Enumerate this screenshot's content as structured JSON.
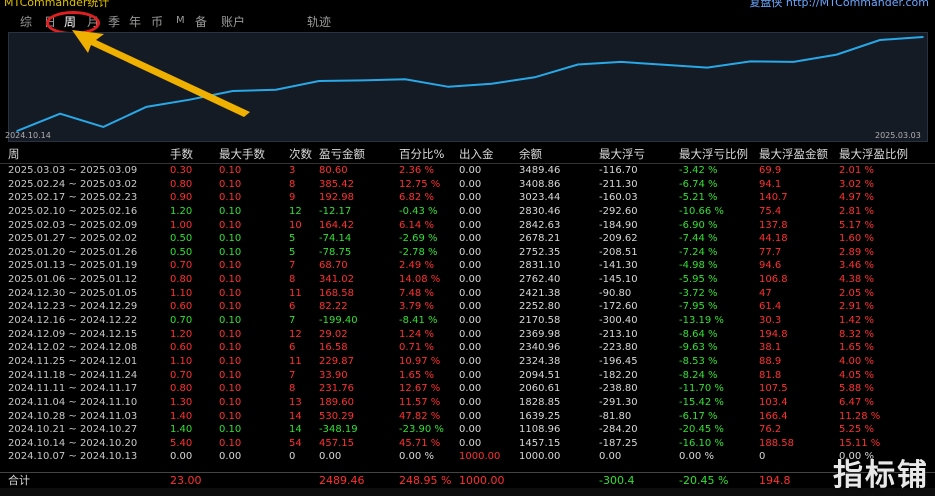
{
  "header": {
    "app_title": "MTCommander统计",
    "site_link": "复盘侠 http://MTCommander.com"
  },
  "tabs": [
    {
      "label": "综",
      "active": false
    },
    {
      "label": "日",
      "active": false
    },
    {
      "label": "周",
      "active": true
    },
    {
      "label": "月",
      "active": false
    },
    {
      "label": "季",
      "active": false
    },
    {
      "label": "年",
      "active": false
    },
    {
      "label": "币",
      "active": false
    },
    {
      "label": "M",
      "active": false
    },
    {
      "label": "备",
      "active": false
    },
    {
      "label": "账户",
      "active": false
    },
    {
      "label": "轨迹",
      "active": false
    }
  ],
  "chart_data": {
    "type": "line",
    "x_start_label": "2024.10.14",
    "x_end_label": "2025.03.03",
    "x": [
      "2024.10.07",
      "2024.10.14",
      "2024.10.21",
      "2024.10.28",
      "2024.11.04",
      "2024.11.11",
      "2024.11.18",
      "2024.11.25",
      "2024.12.02",
      "2024.12.09",
      "2024.12.16",
      "2024.12.23",
      "2024.12.30",
      "2025.01.06",
      "2025.01.13",
      "2025.01.20",
      "2025.01.27",
      "2025.02.03",
      "2025.02.10",
      "2025.02.17",
      "2025.02.24",
      "2025.03.03"
    ],
    "values": [
      1000.0,
      1457.15,
      1108.96,
      1639.25,
      1828.85,
      2060.61,
      2094.51,
      2324.38,
      2340.96,
      2369.98,
      2170.58,
      2252.8,
      2421.38,
      2762.4,
      2831.1,
      2752.35,
      2678.21,
      2842.63,
      2830.46,
      3023.44,
      3408.86,
      3489.46
    ],
    "color": "#29a8e8",
    "background": "#151b24"
  },
  "table": {
    "columns": [
      "周",
      "手数",
      "最大手数",
      "次数",
      "盈亏金额",
      "百分比%",
      "出入金",
      "余额",
      "最大浮亏",
      "最大浮亏比例",
      "最大浮盈金额",
      "最大浮盈比例"
    ],
    "rows": [
      [
        "2025.03.03 ~ 2025.03.09",
        "0.30",
        "0.10",
        "3",
        "80.60",
        "2.36 %",
        "0.00",
        "3489.46",
        "-116.70",
        "-3.42 %",
        "69.9",
        "2.01 %"
      ],
      [
        "2025.02.24 ~ 2025.03.02",
        "0.80",
        "0.10",
        "8",
        "385.42",
        "12.75 %",
        "0.00",
        "3408.86",
        "-211.30",
        "-6.74 %",
        "94.1",
        "3.02 %"
      ],
      [
        "2025.02.17 ~ 2025.02.23",
        "0.90",
        "0.10",
        "9",
        "192.98",
        "6.82 %",
        "0.00",
        "3023.44",
        "-160.03",
        "-5.21 %",
        "140.7",
        "4.97 %"
      ],
      [
        "2025.02.10 ~ 2025.02.16",
        "1.20",
        "0.10",
        "12",
        "-12.17",
        "-0.43 %",
        "0.00",
        "2830.46",
        "-292.60",
        "-10.66 %",
        "75.4",
        "2.81 %"
      ],
      [
        "2025.02.03 ~ 2025.02.09",
        "1.00",
        "0.10",
        "10",
        "164.42",
        "6.14 %",
        "0.00",
        "2842.63",
        "-184.90",
        "-6.90 %",
        "137.8",
        "5.17 %"
      ],
      [
        "2025.01.27 ~ 2025.02.02",
        "0.50",
        "0.10",
        "5",
        "-74.14",
        "-2.69 %",
        "0.00",
        "2678.21",
        "-209.62",
        "-7.44 %",
        "44.18",
        "1.60 %"
      ],
      [
        "2025.01.20 ~ 2025.01.26",
        "0.50",
        "0.10",
        "5",
        "-78.75",
        "-2.78 %",
        "0.00",
        "2752.35",
        "-208.51",
        "-7.24 %",
        "77.7",
        "2.89 %"
      ],
      [
        "2025.01.13 ~ 2025.01.19",
        "0.70",
        "0.10",
        "7",
        "68.70",
        "2.49 %",
        "0.00",
        "2831.10",
        "-141.30",
        "-4.98 %",
        "94.6",
        "3.46 %"
      ],
      [
        "2025.01.06 ~ 2025.01.12",
        "0.80",
        "0.10",
        "8",
        "341.02",
        "14.08 %",
        "0.00",
        "2762.40",
        "-145.10",
        "-5.95 %",
        "106.8",
        "4.38 %"
      ],
      [
        "2024.12.30 ~ 2025.01.05",
        "1.10",
        "0.10",
        "11",
        "168.58",
        "7.48 %",
        "0.00",
        "2421.38",
        "-90.80",
        "-3.72 %",
        "47",
        "2.05 %"
      ],
      [
        "2024.12.23 ~ 2024.12.29",
        "0.60",
        "0.10",
        "6",
        "82.22",
        "3.79 %",
        "0.00",
        "2252.80",
        "-172.60",
        "-7.95 %",
        "61.4",
        "2.91 %"
      ],
      [
        "2024.12.16 ~ 2024.12.22",
        "0.70",
        "0.10",
        "7",
        "-199.40",
        "-8.41 %",
        "0.00",
        "2170.58",
        "-300.40",
        "-13.19 %",
        "30.3",
        "1.42 %"
      ],
      [
        "2024.12.09 ~ 2024.12.15",
        "1.20",
        "0.10",
        "12",
        "29.02",
        "1.24 %",
        "0.00",
        "2369.98",
        "-213.10",
        "-8.64 %",
        "194.8",
        "8.32 %"
      ],
      [
        "2024.12.02 ~ 2024.12.08",
        "0.60",
        "0.10",
        "6",
        "16.58",
        "0.71 %",
        "0.00",
        "2340.96",
        "-223.80",
        "-9.63 %",
        "38.1",
        "1.65 %"
      ],
      [
        "2024.11.25 ~ 2024.12.01",
        "1.10",
        "0.10",
        "11",
        "229.87",
        "10.97 %",
        "0.00",
        "2324.38",
        "-196.45",
        "-8.53 %",
        "88.9",
        "4.00 %"
      ],
      [
        "2024.11.18 ~ 2024.11.24",
        "0.70",
        "0.10",
        "7",
        "33.90",
        "1.65 %",
        "0.00",
        "2094.51",
        "-182.20",
        "-8.24 %",
        "81.8",
        "4.05 %"
      ],
      [
        "2024.11.11 ~ 2024.11.17",
        "0.80",
        "0.10",
        "8",
        "231.76",
        "12.67 %",
        "0.00",
        "2060.61",
        "-238.80",
        "-11.70 %",
        "107.5",
        "5.88 %"
      ],
      [
        "2024.11.04 ~ 2024.11.10",
        "1.30",
        "0.10",
        "13",
        "189.60",
        "11.57 %",
        "0.00",
        "1828.85",
        "-291.30",
        "-15.42 %",
        "103.4",
        "6.47 %"
      ],
      [
        "2024.10.28 ~ 2024.11.03",
        "1.40",
        "0.10",
        "14",
        "530.29",
        "47.82 %",
        "0.00",
        "1639.25",
        "-81.80",
        "-6.17 %",
        "166.4",
        "11.28 %"
      ],
      [
        "2024.10.21 ~ 2024.10.27",
        "1.40",
        "0.10",
        "14",
        "-348.19",
        "-23.90 %",
        "0.00",
        "1108.96",
        "-284.20",
        "-20.45 %",
        "76.2",
        "5.25 %"
      ],
      [
        "2024.10.14 ~ 2024.10.20",
        "5.40",
        "0.10",
        "54",
        "457.15",
        "45.71 %",
        "0.00",
        "1457.15",
        "-187.25",
        "-16.10 %",
        "188.58",
        "15.11 %"
      ],
      [
        "2024.10.07 ~ 2024.10.13",
        "0.00",
        "0.00",
        "0",
        "0.00",
        "0.00 %",
        "1000.00",
        "1000.00",
        "0.00",
        "0.00 %",
        "0",
        "0.00 %"
      ]
    ],
    "total": [
      "合计",
      "23.00",
      "",
      "",
      "2489.46",
      "248.95 %",
      "1000.00",
      "",
      "-300.4",
      "-20.45 %",
      "194.8",
      ""
    ]
  },
  "colors": {
    "profit": "#ff3030",
    "loss": "#30e030",
    "neutral": "#d8d8d8",
    "deposit": "#ff3030",
    "accent": "#29a8e8",
    "annotation_arrow": "#f0b000",
    "annotation_ring": "#e02020"
  },
  "watermark": "指标铺"
}
